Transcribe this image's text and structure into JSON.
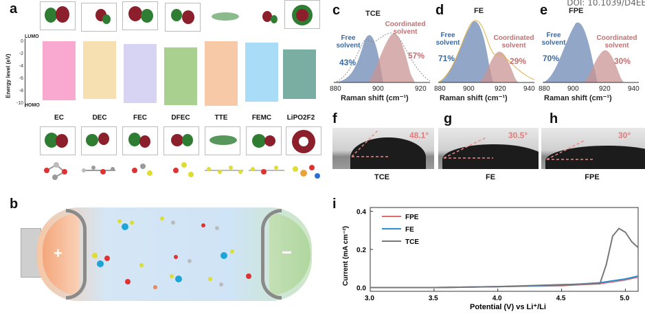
{
  "doi": "DOI: 10.1039/D4EE",
  "panels": {
    "a": "a",
    "b": "b",
    "c": "c",
    "d": "d",
    "e": "e",
    "f": "f",
    "g": "g",
    "h": "h",
    "i": "i"
  },
  "panel_a": {
    "ylabel": "Energy level (eV)",
    "lumo": "LUMO",
    "homo": "HOMO",
    "yticks": [
      "0",
      "-2",
      "-4",
      "-6",
      "-8",
      "-10"
    ],
    "molecules": [
      "EC",
      "DEC",
      "FEC",
      "DFEC",
      "TTE",
      "FEMC",
      "LiPO2F2"
    ],
    "bar_colors": [
      "#f9a8d0",
      "#f6e0b2",
      "#d6d4f2",
      "#a9d08e",
      "#f8c9a6",
      "#a9dcf6",
      "#7aaea2"
    ]
  },
  "panel_b": {
    "plus": "+",
    "minus": "−"
  },
  "raman": {
    "xlabel": "Raman shift (cm⁻¹)",
    "c": {
      "title": "TCE",
      "free_label": "Free solvent",
      "free_pct": "43%",
      "coord_label": "Coordinated solvent",
      "coord_pct": "57%",
      "xticks": [
        "880",
        "900",
        "920"
      ]
    },
    "d": {
      "title": "FE",
      "free_label": "Free solvent",
      "free_pct": "71%",
      "coord_label": "Coordinated solvent",
      "coord_pct": "29%",
      "xticks": [
        "880",
        "900",
        "920",
        "940"
      ]
    },
    "e": {
      "title": "FPE",
      "free_label": "Free solvent",
      "free_pct": "70%",
      "coord_label": "Coordinated solvent",
      "coord_pct": "30%",
      "xticks": [
        "880",
        "900",
        "920",
        "940"
      ]
    }
  },
  "contact": {
    "f": {
      "angle": "48.1°",
      "label": "TCE"
    },
    "g": {
      "angle": "30.5°",
      "label": "FE"
    },
    "h": {
      "angle": "30°",
      "label": "FPE"
    }
  },
  "chart_data": {
    "type": "line",
    "title": "",
    "xlabel": "Potential (V) vs Li⁺/Li",
    "ylabel": "Current (mA cm⁻²)",
    "xlim": [
      3.0,
      5.1
    ],
    "ylim": [
      -0.02,
      0.42
    ],
    "xticks": [
      "3.0",
      "3.5",
      "4.0",
      "4.5",
      "5.0"
    ],
    "yticks": [
      "0.0",
      "0.2",
      "0.4"
    ],
    "legend": [
      "FPE",
      "FE",
      "TCE"
    ],
    "series": [
      {
        "name": "FPE",
        "color": "#e06b6b",
        "x": [
          3.0,
          3.5,
          4.0,
          4.5,
          4.8,
          5.0,
          5.1
        ],
        "y": [
          0.0,
          0.0,
          0.005,
          0.01,
          0.02,
          0.04,
          0.055
        ]
      },
      {
        "name": "FE",
        "color": "#2a8fd6",
        "x": [
          3.0,
          3.5,
          4.0,
          4.5,
          4.8,
          5.0,
          5.1
        ],
        "y": [
          0.0,
          0.0,
          0.004,
          0.012,
          0.025,
          0.045,
          0.06
        ]
      },
      {
        "name": "TCE",
        "color": "#777777",
        "x": [
          3.0,
          3.5,
          4.0,
          4.5,
          4.8,
          4.85,
          4.9,
          4.95,
          5.0,
          5.05,
          5.1
        ],
        "y": [
          0.0,
          0.0,
          0.005,
          0.015,
          0.02,
          0.12,
          0.27,
          0.31,
          0.29,
          0.24,
          0.21
        ]
      }
    ]
  }
}
